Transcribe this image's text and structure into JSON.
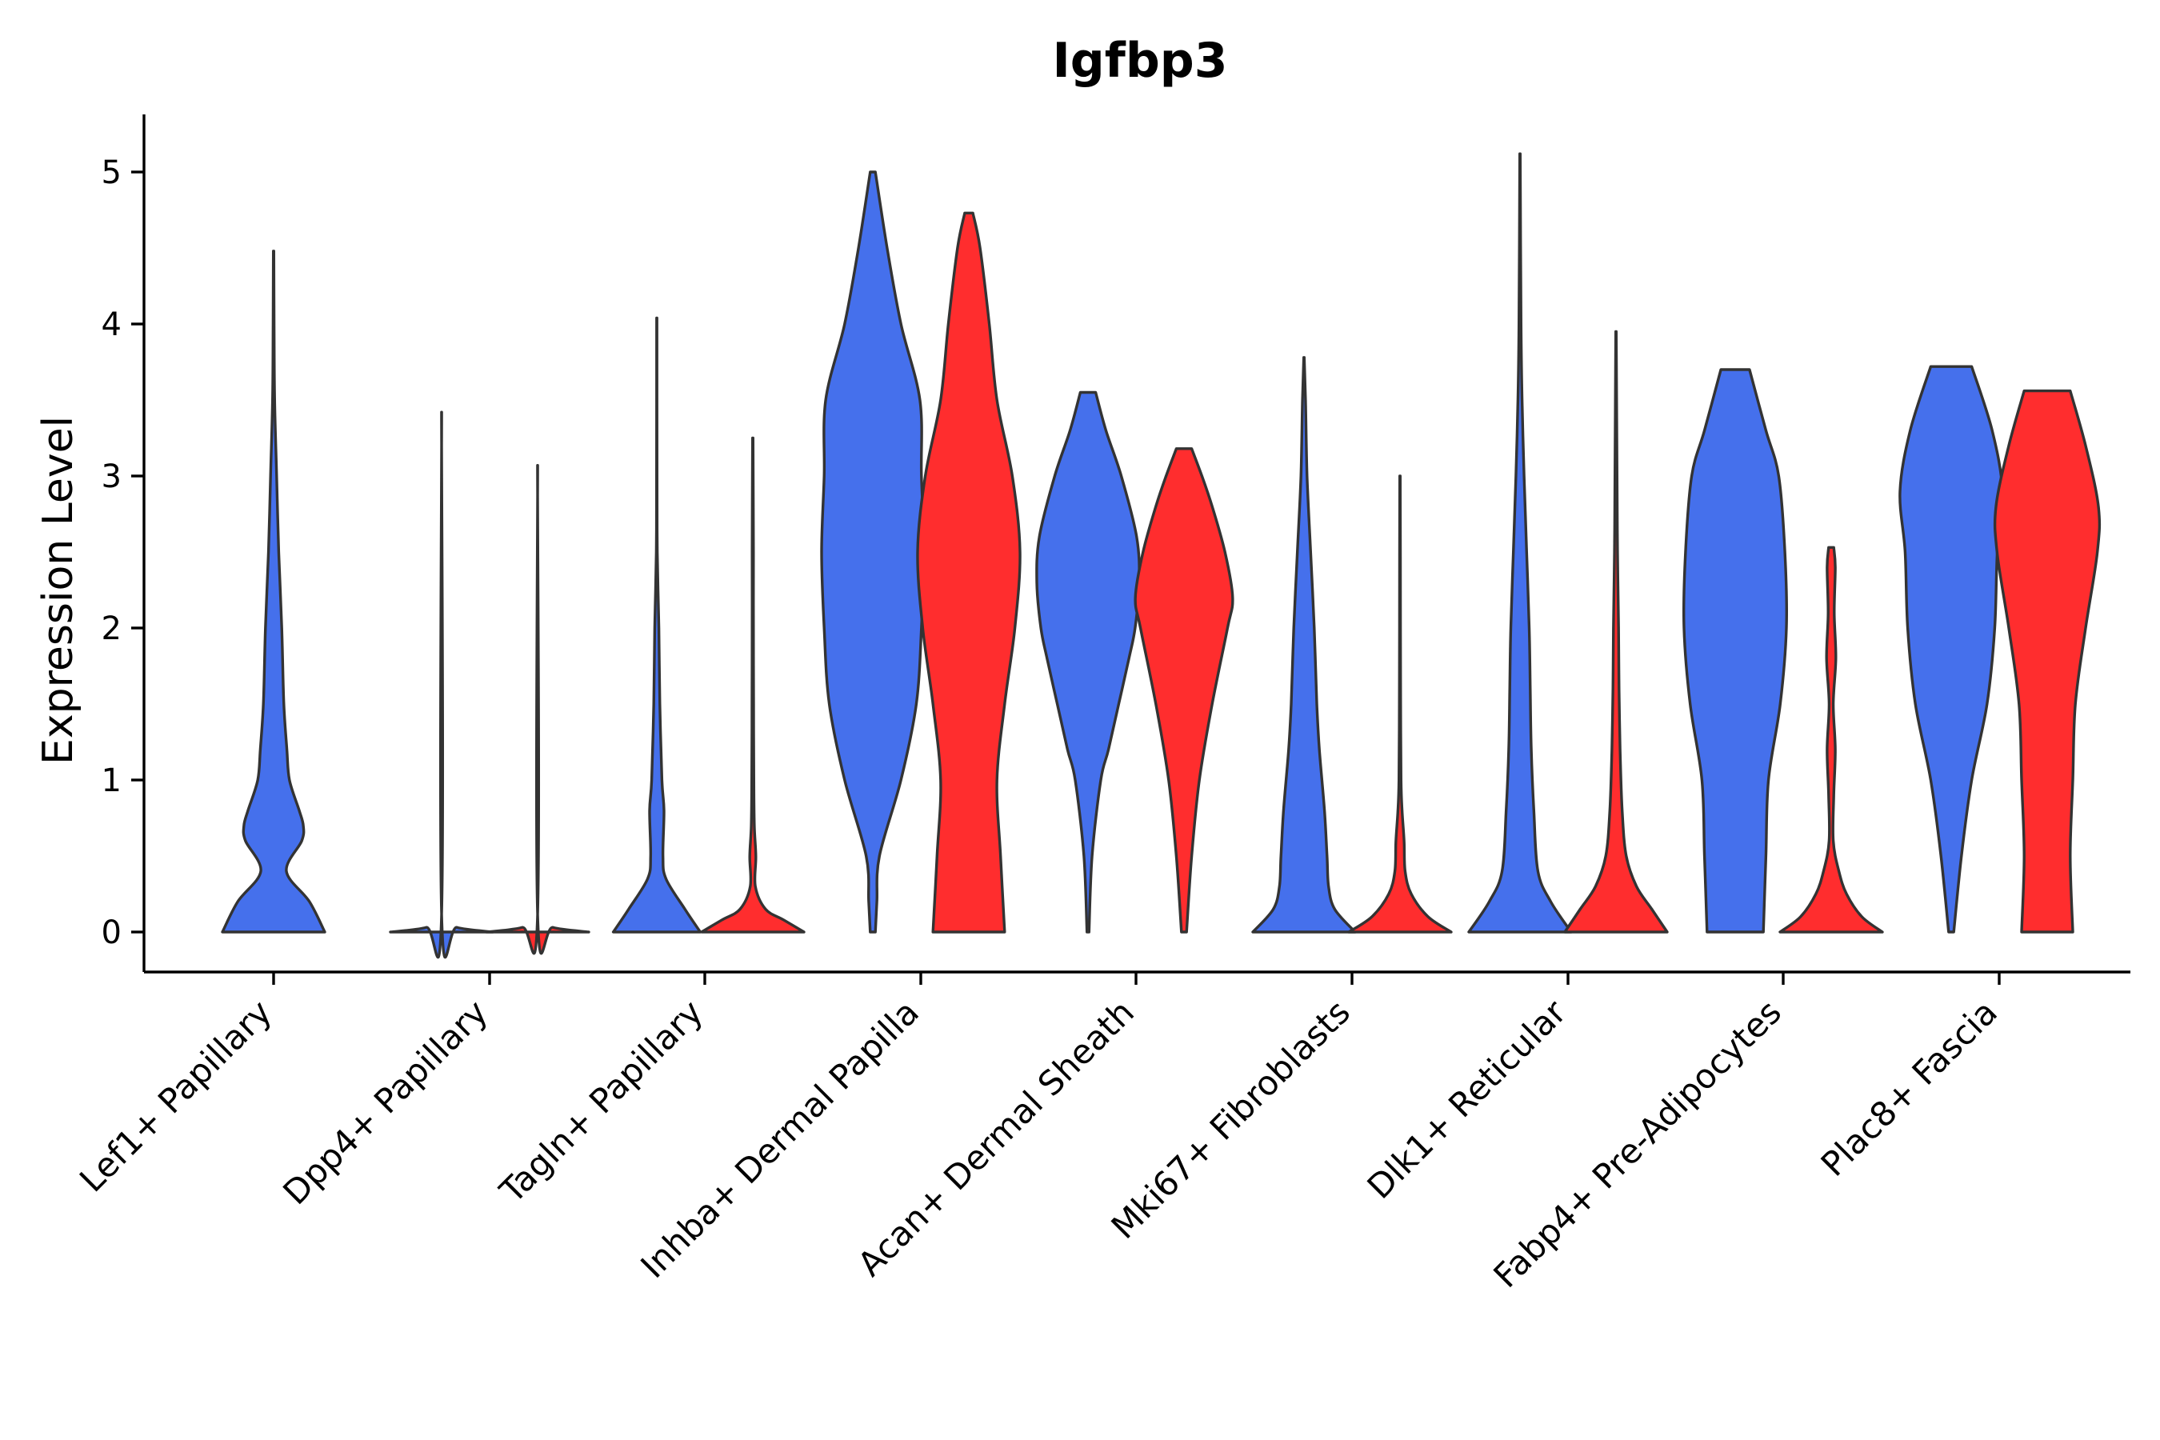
{
  "chart_data": {
    "type": "violin",
    "title": "Igfbp3",
    "xlabel": "",
    "ylabel": "Expression Level",
    "ylim": [
      -0.26,
      5.4
    ],
    "yticks": [
      0,
      1,
      2,
      3,
      4,
      5
    ],
    "grid": false,
    "legend": "none",
    "colors": {
      "blue": "#4570EC",
      "red": "#FF2D2E"
    },
    "categories": [
      "Lef1+ Papillary",
      "Dpp4+ Papillary",
      "Tagln+ Papillary",
      "Inhba+ Dermal Papilla",
      "Acan+ Dermal Sheath",
      "Mki67+ Fibroblasts",
      "Dlk1+ Reticular",
      "Fabp4+ Pre-Adipocytes",
      "Plac8+ Fascia"
    ],
    "series": [
      {
        "name": "blue",
        "violins": [
          {
            "category": 0,
            "max": 4.48,
            "profile": [
              [
                0,
                1
              ],
              [
                0.2,
                0.7
              ],
              [
                0.4,
                0.25
              ],
              [
                0.6,
                0.55
              ],
              [
                0.7,
                0.58
              ],
              [
                0.8,
                0.5
              ],
              [
                1.0,
                0.31
              ],
              [
                1.2,
                0.26
              ],
              [
                1.5,
                0.2
              ],
              [
                2.0,
                0.16
              ],
              [
                2.5,
                0.1
              ],
              [
                3.0,
                0.06
              ],
              [
                3.5,
                0.02
              ],
              [
                4.0,
                0.01
              ],
              [
                4.48,
                0.004
              ]
            ]
          },
          {
            "category": 1,
            "max": 3.42,
            "profile": [
              [
                0,
                1
              ],
              [
                0.03,
                0.3
              ],
              [
                0.1,
                0.002
              ],
              [
                3.42,
                0.002
              ]
            ]
          },
          {
            "category": 2,
            "max": 4.04,
            "profile": [
              [
                0,
                0.85
              ],
              [
                0.15,
                0.55
              ],
              [
                0.35,
                0.18
              ],
              [
                0.5,
                0.12
              ],
              [
                0.8,
                0.14
              ],
              [
                1.0,
                0.1
              ],
              [
                1.5,
                0.06
              ],
              [
                2.0,
                0.04
              ],
              [
                2.5,
                0.01
              ],
              [
                3.0,
                0.004
              ],
              [
                4.04,
                0.003
              ]
            ]
          },
          {
            "category": 3,
            "max": 5.0,
            "profile": [
              [
                0,
                0.05
              ],
              [
                0.2,
                0.08
              ],
              [
                0.5,
                0.13
              ],
              [
                1.0,
                0.55
              ],
              [
                1.5,
                0.85
              ],
              [
                2.0,
                0.95
              ],
              [
                2.5,
                1.0
              ],
              [
                3.0,
                0.95
              ],
              [
                3.5,
                0.92
              ],
              [
                4.0,
                0.55
              ],
              [
                4.5,
                0.28
              ],
              [
                5.0,
                0.05
              ]
            ]
          },
          {
            "category": 4,
            "max": 3.55,
            "profile": [
              [
                0,
                0.02
              ],
              [
                0.5,
                0.08
              ],
              [
                1.0,
                0.25
              ],
              [
                1.2,
                0.4
              ],
              [
                1.5,
                0.6
              ],
              [
                1.8,
                0.8
              ],
              [
                2.0,
                0.92
              ],
              [
                2.3,
                1.0
              ],
              [
                2.6,
                0.95
              ],
              [
                3.0,
                0.65
              ],
              [
                3.3,
                0.35
              ],
              [
                3.55,
                0.15
              ]
            ]
          },
          {
            "category": 5,
            "max": 3.78,
            "profile": [
              [
                0,
                1
              ],
              [
                0.15,
                0.6
              ],
              [
                0.3,
                0.48
              ],
              [
                0.5,
                0.45
              ],
              [
                0.8,
                0.4
              ],
              [
                1.2,
                0.3
              ],
              [
                1.5,
                0.25
              ],
              [
                2.0,
                0.2
              ],
              [
                2.5,
                0.13
              ],
              [
                3.0,
                0.06
              ],
              [
                3.5,
                0.03
              ],
              [
                3.78,
                0.005
              ]
            ]
          },
          {
            "category": 6,
            "max": 5.12,
            "profile": [
              [
                0,
                1
              ],
              [
                0.2,
                0.6
              ],
              [
                0.4,
                0.35
              ],
              [
                0.8,
                0.27
              ],
              [
                1.2,
                0.22
              ],
              [
                1.6,
                0.2
              ],
              [
                2.0,
                0.18
              ],
              [
                2.5,
                0.13
              ],
              [
                3.0,
                0.08
              ],
              [
                3.5,
                0.04
              ],
              [
                4.0,
                0.02
              ],
              [
                5.12,
                0.004
              ]
            ]
          },
          {
            "category": 7,
            "max": 3.7,
            "profile": [
              [
                0,
                0.55
              ],
              [
                0.5,
                0.6
              ],
              [
                1.0,
                0.65
              ],
              [
                1.5,
                0.88
              ],
              [
                2.0,
                1.0
              ],
              [
                2.5,
                0.97
              ],
              [
                3.0,
                0.85
              ],
              [
                3.3,
                0.6
              ],
              [
                3.7,
                0.28
              ]
            ]
          },
          {
            "category": 8,
            "max": 3.72,
            "profile": [
              [
                0,
                0.05
              ],
              [
                0.5,
                0.2
              ],
              [
                1.0,
                0.4
              ],
              [
                1.5,
                0.7
              ],
              [
                2.0,
                0.85
              ],
              [
                2.5,
                0.9
              ],
              [
                2.9,
                1.0
              ],
              [
                3.3,
                0.8
              ],
              [
                3.72,
                0.4
              ]
            ]
          }
        ]
      },
      {
        "name": "red",
        "violins": [
          {
            "category": 1,
            "max": 3.07,
            "profile": [
              [
                0,
                1
              ],
              [
                0.03,
                0.3
              ],
              [
                0.1,
                0.002
              ],
              [
                3.07,
                0.002
              ]
            ]
          },
          {
            "category": 2,
            "max": 3.25,
            "profile": [
              [
                0,
                1
              ],
              [
                0.08,
                0.6
              ],
              [
                0.15,
                0.25
              ],
              [
                0.3,
                0.05
              ],
              [
                0.5,
                0.06
              ],
              [
                0.7,
                0.03
              ],
              [
                1.0,
                0.02
              ],
              [
                1.5,
                0.015
              ],
              [
                2.0,
                0.012
              ],
              [
                2.5,
                0.012
              ],
              [
                3.25,
                0.005
              ]
            ]
          },
          {
            "category": 3,
            "max": 4.73,
            "profile": [
              [
                0,
                0.7
              ],
              [
                0.5,
                0.62
              ],
              [
                1.0,
                0.55
              ],
              [
                1.5,
                0.7
              ],
              [
                2.0,
                0.9
              ],
              [
                2.5,
                1.0
              ],
              [
                3.0,
                0.85
              ],
              [
                3.5,
                0.55
              ],
              [
                4.0,
                0.4
              ],
              [
                4.5,
                0.22
              ],
              [
                4.73,
                0.08
              ]
            ]
          },
          {
            "category": 4,
            "max": 3.18,
            "profile": [
              [
                0,
                0.05
              ],
              [
                0.5,
                0.15
              ],
              [
                1.0,
                0.3
              ],
              [
                1.5,
                0.55
              ],
              [
                2.0,
                0.85
              ],
              [
                2.2,
                0.95
              ],
              [
                2.5,
                0.8
              ],
              [
                2.8,
                0.55
              ],
              [
                3.0,
                0.35
              ],
              [
                3.18,
                0.15
              ]
            ]
          },
          {
            "category": 5,
            "max": 3.0,
            "profile": [
              [
                0,
                1
              ],
              [
                0.1,
                0.55
              ],
              [
                0.25,
                0.22
              ],
              [
                0.4,
                0.1
              ],
              [
                0.6,
                0.08
              ],
              [
                0.8,
                0.04
              ],
              [
                1.0,
                0.02
              ],
              [
                1.5,
                0.012
              ],
              [
                2.0,
                0.01
              ],
              [
                3.0,
                0.005
              ]
            ]
          },
          {
            "category": 6,
            "max": 3.95,
            "profile": [
              [
                0,
                1
              ],
              [
                0.15,
                0.7
              ],
              [
                0.3,
                0.4
              ],
              [
                0.5,
                0.2
              ],
              [
                0.8,
                0.12
              ],
              [
                1.2,
                0.08
              ],
              [
                1.6,
                0.06
              ],
              [
                2.0,
                0.05
              ],
              [
                2.5,
                0.03
              ],
              [
                3.0,
                0.02
              ],
              [
                3.95,
                0.005
              ]
            ]
          },
          {
            "category": 7,
            "max": 2.53,
            "profile": [
              [
                0,
                1
              ],
              [
                0.1,
                0.6
              ],
              [
                0.25,
                0.3
              ],
              [
                0.4,
                0.15
              ],
              [
                0.6,
                0.04
              ],
              [
                0.9,
                0.05
              ],
              [
                1.2,
                0.08
              ],
              [
                1.5,
                0.04
              ],
              [
                1.8,
                0.09
              ],
              [
                2.1,
                0.06
              ],
              [
                2.4,
                0.08
              ],
              [
                2.53,
                0.05
              ]
            ]
          },
          {
            "category": 8,
            "max": 3.56,
            "profile": [
              [
                0,
                0.5
              ],
              [
                0.5,
                0.45
              ],
              [
                1.0,
                0.5
              ],
              [
                1.5,
                0.55
              ],
              [
                2.0,
                0.75
              ],
              [
                2.5,
                0.98
              ],
              [
                2.8,
                1.0
              ],
              [
                3.2,
                0.75
              ],
              [
                3.56,
                0.45
              ]
            ]
          }
        ]
      }
    ]
  }
}
